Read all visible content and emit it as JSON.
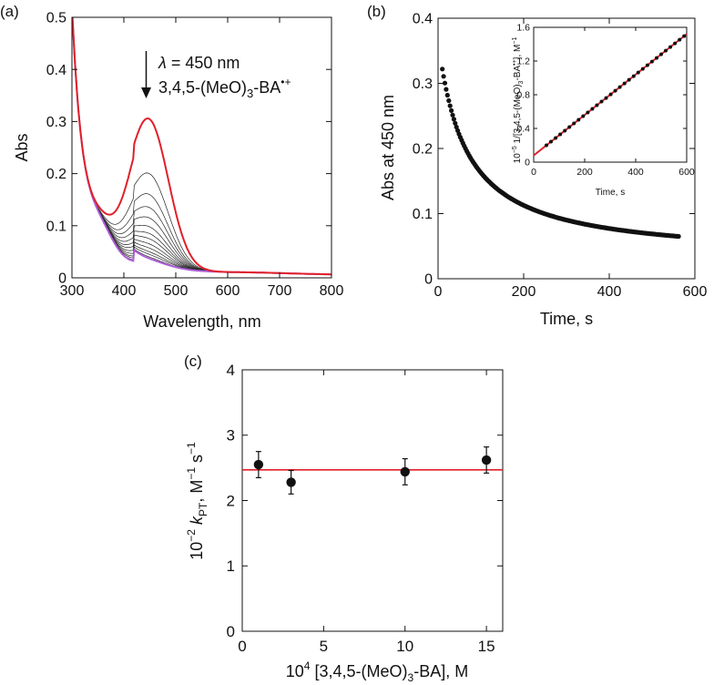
{
  "chart_data": [
    {
      "panel_label": "(a)",
      "type": "line",
      "xlabel": "Wavelength, nm",
      "ylabel": "Abs",
      "xlim": [
        300,
        800
      ],
      "ylim": [
        0,
        0.5
      ],
      "xticks": [
        "300",
        "400",
        "500",
        "600",
        "700",
        "800"
      ],
      "yticks": [
        "0",
        "0.1",
        "0.2",
        "0.3",
        "0.4",
        "0.5"
      ],
      "annotation": {
        "line1_symbol": "λ",
        "line1_text": " = 450 nm",
        "line2_text": "3,4,5-(MeO)",
        "line2_sub": "3",
        "line2_suffix": "-BA",
        "line2_sup": "•+",
        "arrow_x": 450
      },
      "peak_values_at_450": [
        0.325,
        0.22,
        0.18,
        0.155,
        0.135,
        0.118,
        0.105,
        0.095,
        0.085,
        0.077,
        0.07,
        0.065,
        0.06,
        0.057
      ],
      "colors": {
        "first": "#e0202a",
        "middle": "#222222",
        "last": "#b060d8"
      }
    },
    {
      "panel_label": "(b)",
      "type": "scatter",
      "xlabel": "Time, s",
      "ylabel": "Abs at 450 nm",
      "xlim": [
        0,
        600
      ],
      "ylim": [
        0,
        0.4
      ],
      "xticks": [
        "0",
        "200",
        "400",
        "600"
      ],
      "yticks": [
        "0",
        "0.1",
        "0.2",
        "0.3",
        "0.4"
      ],
      "decay": {
        "t_start": 10,
        "t_end": 562,
        "abs_start": 0.322,
        "abs_end": 0.065
      },
      "inset": {
        "type": "scatter",
        "xlabel": "Time, s",
        "ylabel": "10−5 1/[3,4,5-(MeO)3-BA•+], M−1",
        "ylabel_parts": [
          "10",
          "−5",
          " 1/[3,4,5-(MeO)",
          "3",
          "-BA",
          "•+",
          "], M",
          "−1"
        ],
        "xlim": [
          0,
          600
        ],
        "ylim": [
          0,
          1.6
        ],
        "xticks": [
          "0",
          "200",
          "400",
          "600"
        ],
        "yticks": [
          "0",
          "0.4",
          "0.8",
          "1.2",
          "1.6"
        ],
        "fit": {
          "x0": 0,
          "y0": 0.08,
          "x1": 600,
          "y1": 1.52
        },
        "points_range": {
          "x_start": 50,
          "x_end": 590
        },
        "fit_color": "#e0202a"
      }
    },
    {
      "panel_label": "(c)",
      "type": "scatter",
      "xlabel_parts": [
        "10",
        "4",
        " [3,4,5-(MeO)",
        "3",
        "-BA], M"
      ],
      "xlabel": "10^4 [3,4,5-(MeO)3-BA], M",
      "ylabel_parts": [
        "10",
        "−2",
        " ",
        "k",
        "PT",
        ", M",
        "−1",
        " s",
        "−1"
      ],
      "ylabel": "10^−2 kPT, M^−1 s^−1",
      "xlim": [
        0,
        16
      ],
      "ylim": [
        0,
        4
      ],
      "xticks": [
        "0",
        "5",
        "10",
        "15"
      ],
      "yticks": [
        "0",
        "1",
        "2",
        "3",
        "4"
      ],
      "x": [
        1,
        3,
        10,
        15
      ],
      "y": [
        2.55,
        2.28,
        2.44,
        2.62
      ],
      "yerr": [
        0.2,
        0.18,
        0.2,
        0.2
      ],
      "mean_line": 2.47,
      "line_color": "#e0202a"
    }
  ]
}
